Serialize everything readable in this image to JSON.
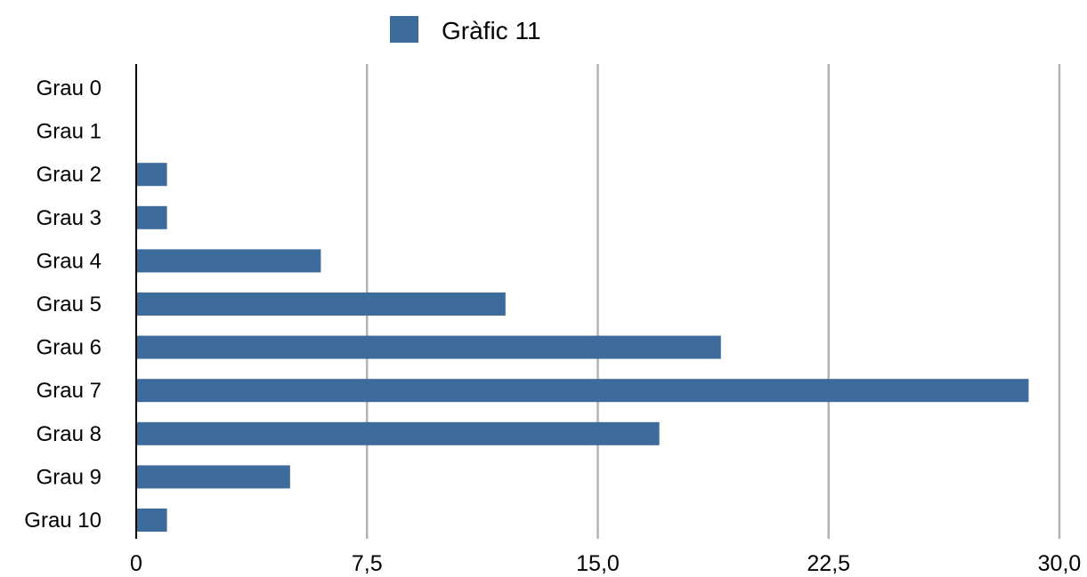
{
  "chart_data": {
    "type": "bar",
    "orientation": "horizontal",
    "categories": [
      "Grau 0",
      "Grau 1",
      "Grau 2",
      "Grau 3",
      "Grau 4",
      "Grau 5",
      "Grau 6",
      "Grau 7",
      "Grau 8",
      "Grau 9",
      "Grau 10"
    ],
    "series": [
      {
        "name": "Gràfic 11",
        "color": "#3d6b9b",
        "values": [
          0,
          0,
          1,
          1,
          6,
          12,
          19,
          29,
          17,
          5,
          1
        ]
      }
    ],
    "xlim": [
      0,
      30
    ],
    "x_ticks": [
      0,
      7.5,
      15,
      22.5,
      30
    ],
    "x_tick_labels": [
      "0",
      "7,5",
      "15,0",
      "22,5",
      "30,0"
    ],
    "grid": "vertical",
    "grid_color": "#b3b3b3",
    "legend_position": "top-center",
    "title": "",
    "xlabel": "",
    "ylabel": ""
  }
}
